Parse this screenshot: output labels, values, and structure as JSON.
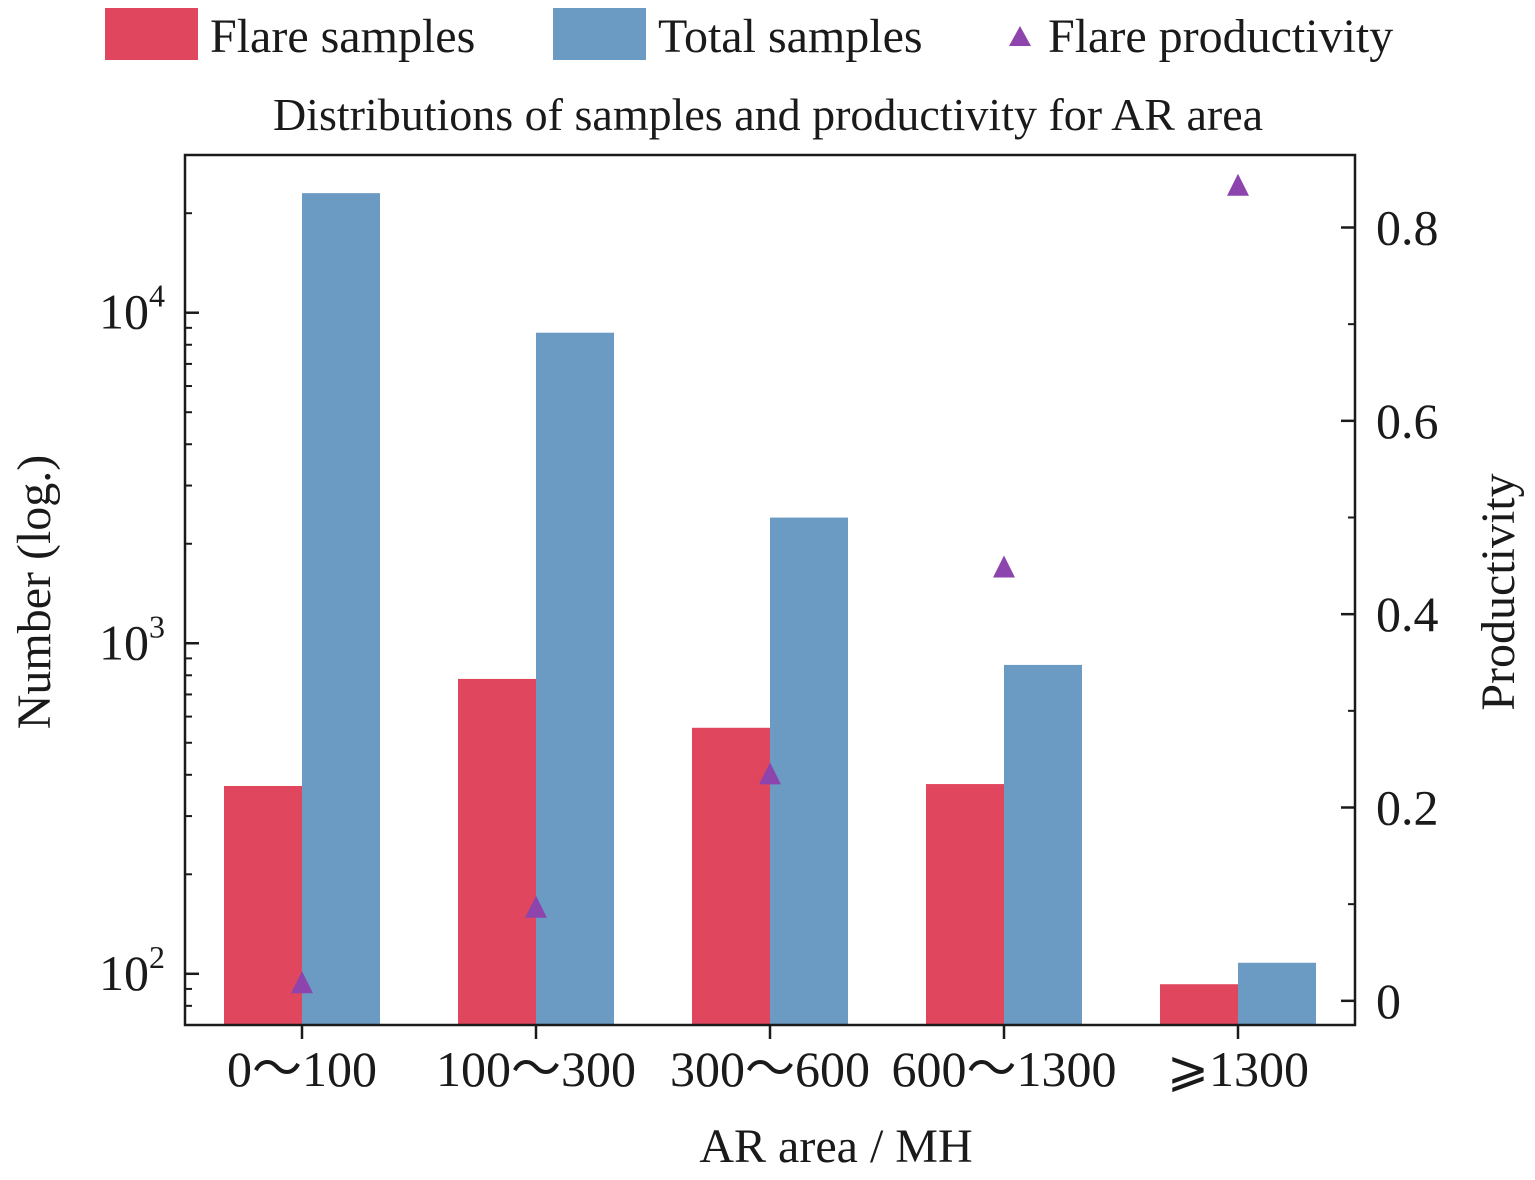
{
  "chart_data": {
    "type": "bar",
    "title": "Distributions of samples and productivity for AR area",
    "xlabel": "AR area / MH",
    "ylabel_left": "Number (log.)",
    "ylabel_right": "Productivity",
    "categories": [
      "0～100",
      "100～300",
      "300～600",
      "600～1300",
      "⩾1300"
    ],
    "left_axis": {
      "scale": "log",
      "range": [
        70,
        30000
      ],
      "ticks": [
        {
          "value": 100,
          "base": "10",
          "exp": "2"
        },
        {
          "value": 1000,
          "base": "10",
          "exp": "3"
        },
        {
          "value": 10000,
          "base": "10",
          "exp": "4"
        }
      ]
    },
    "right_axis": {
      "scale": "linear",
      "range": [
        -0.025,
        0.875
      ],
      "ticks": [
        "0",
        "0.2",
        "0.4",
        "0.6",
        "0.8"
      ]
    },
    "series": [
      {
        "name": "Flare samples",
        "type": "bar",
        "axis": "left",
        "color": "#e0475f",
        "values": [
          370,
          780,
          555,
          375,
          93
        ]
      },
      {
        "name": "Total samples",
        "type": "bar",
        "axis": "left",
        "color": "#6b9bc3",
        "values": [
          23000,
          8700,
          2400,
          860,
          108
        ]
      },
      {
        "name": "Flare productivity",
        "type": "scatter",
        "axis": "right",
        "marker": "triangle",
        "color": "#8e44ad",
        "values": [
          0.017,
          0.095,
          0.233,
          0.447,
          0.842
        ]
      }
    ],
    "legend": {
      "position": "top"
    },
    "grid": false
  }
}
